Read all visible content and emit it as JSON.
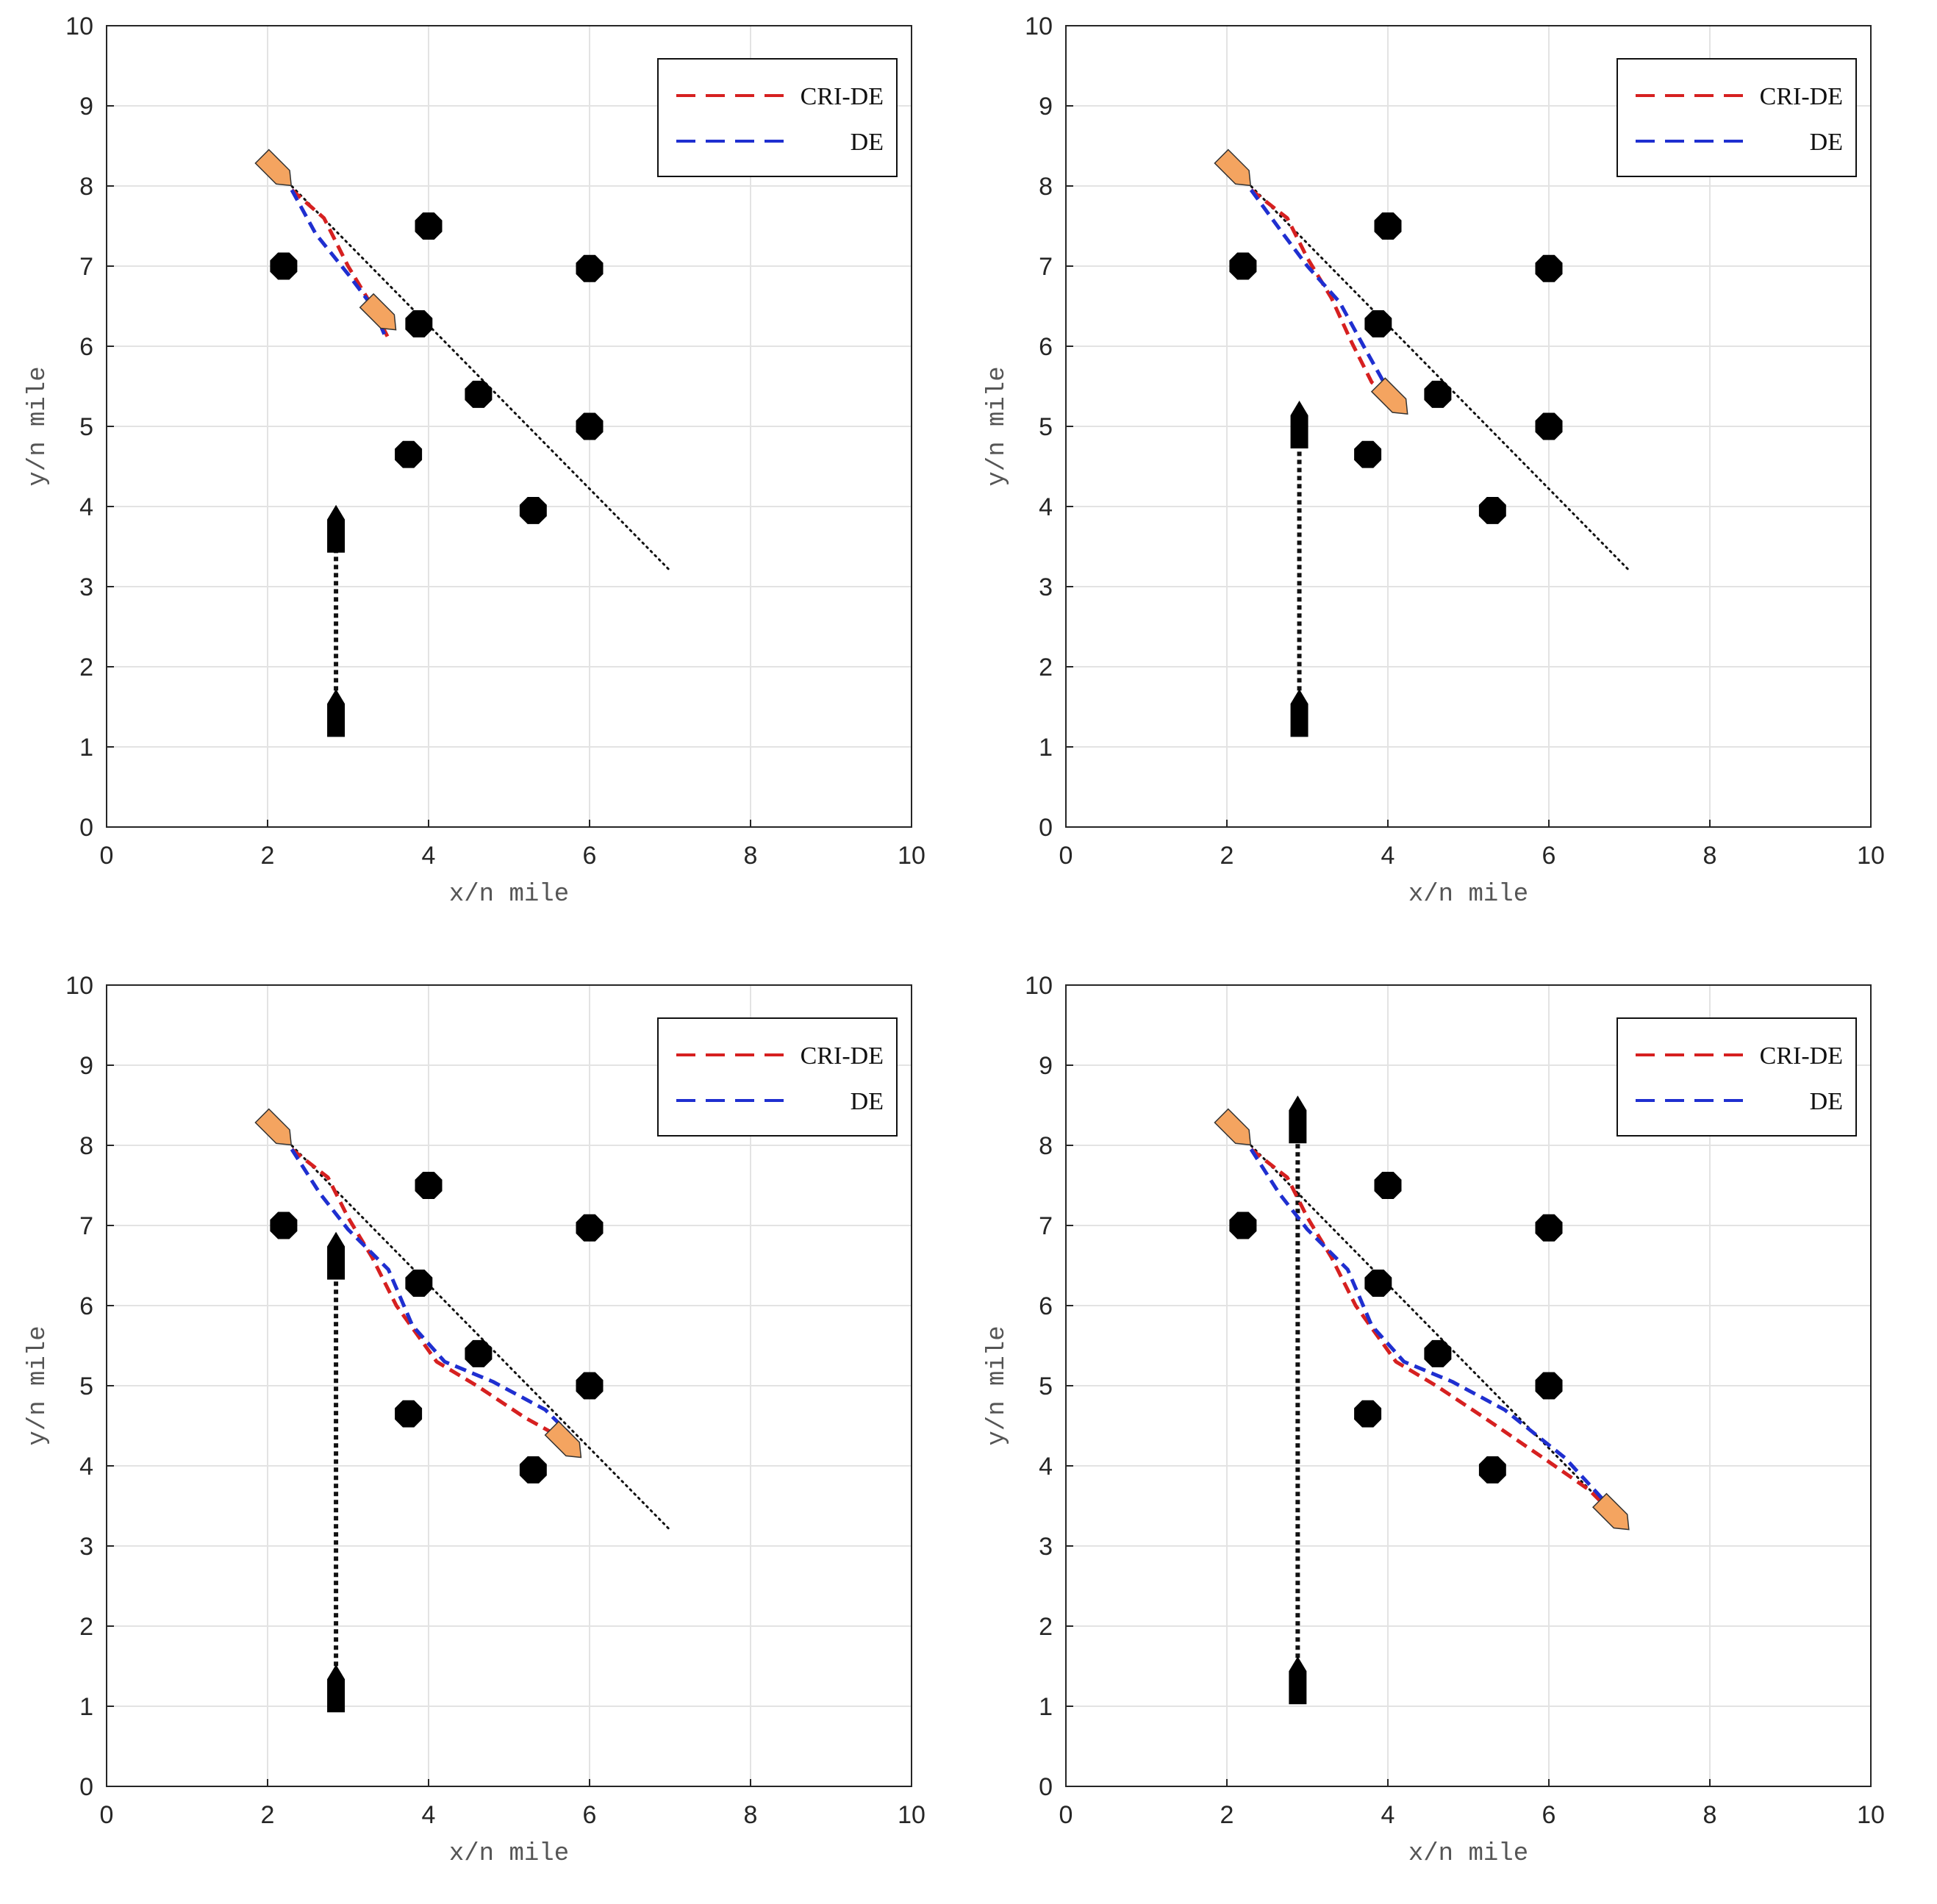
{
  "colors": {
    "cri_de": "#d62020",
    "de": "#1f2fd0",
    "own_ship_fill": "#f4a460",
    "target_ship": "#000000",
    "obstacle": "#000000",
    "grid": "#e3e3e3"
  },
  "chart_data": [
    {
      "type": "line",
      "stage": 1,
      "xlabel": "x/n mile",
      "ylabel": "y/n mile",
      "xlim": [
        0,
        10
      ],
      "ylim": [
        0,
        10
      ],
      "xticks": [
        "0",
        "2",
        "4",
        "6",
        "8",
        "10"
      ],
      "yticks": [
        "0",
        "1",
        "2",
        "3",
        "4",
        "5",
        "6",
        "7",
        "8",
        "9",
        "10"
      ],
      "grid": true,
      "legend": {
        "position": "top-right",
        "entries": [
          "CRI-DE",
          "DE"
        ]
      },
      "obstacles": [
        [
          2.2,
          7.0
        ],
        [
          4.0,
          7.5
        ],
        [
          6.0,
          6.97
        ],
        [
          3.88,
          6.28
        ],
        [
          4.62,
          5.4
        ],
        [
          6.0,
          5.0
        ],
        [
          3.75,
          4.65
        ],
        [
          5.3,
          3.95
        ]
      ],
      "planned_route": [
        [
          2.2,
          8.1
        ],
        [
          7.0,
          3.2
        ]
      ],
      "own_ship_start": [
        2.1,
        8.2
      ],
      "own_ship_current": [
        3.4,
        6.4
      ],
      "series": [
        {
          "name": "CRI-DE",
          "points": [
            [
              2.3,
              7.95
            ],
            [
              2.7,
              7.6
            ],
            [
              3.0,
              7.0
            ],
            [
              3.3,
              6.5
            ],
            [
              3.5,
              6.1
            ]
          ]
        },
        {
          "name": "DE",
          "points": [
            [
              2.3,
              7.95
            ],
            [
              2.6,
              7.4
            ],
            [
              3.0,
              6.9
            ],
            [
              3.3,
              6.5
            ],
            [
              3.45,
              6.15
            ]
          ]
        }
      ],
      "target_ship": {
        "start": [
          2.85,
          1.4
        ],
        "current": [
          2.85,
          3.7
        ]
      }
    },
    {
      "type": "line",
      "stage": 2,
      "xlabel": "x/n mile",
      "ylabel": "y/n mile",
      "xlim": [
        0,
        10
      ],
      "ylim": [
        0,
        10
      ],
      "xticks": [
        "0",
        "2",
        "4",
        "6",
        "8",
        "10"
      ],
      "yticks": [
        "0",
        "1",
        "2",
        "3",
        "4",
        "5",
        "6",
        "7",
        "8",
        "9",
        "10"
      ],
      "grid": true,
      "legend": {
        "position": "top-right",
        "entries": [
          "CRI-DE",
          "DE"
        ]
      },
      "obstacles": [
        [
          2.2,
          7.0
        ],
        [
          4.0,
          7.5
        ],
        [
          6.0,
          6.97
        ],
        [
          3.88,
          6.28
        ],
        [
          4.62,
          5.4
        ],
        [
          6.0,
          5.0
        ],
        [
          3.75,
          4.65
        ],
        [
          5.3,
          3.95
        ]
      ],
      "planned_route": [
        [
          2.2,
          8.1
        ],
        [
          7.0,
          3.2
        ]
      ],
      "own_ship_start": [
        2.1,
        8.2
      ],
      "own_ship_current": [
        4.05,
        5.35
      ],
      "series": [
        {
          "name": "CRI-DE",
          "points": [
            [
              2.3,
              7.95
            ],
            [
              2.75,
              7.6
            ],
            [
              3.0,
              7.1
            ],
            [
              3.3,
              6.6
            ],
            [
              3.55,
              6.05
            ],
            [
              3.8,
              5.55
            ],
            [
              4.1,
              5.3
            ]
          ]
        },
        {
          "name": "DE",
          "points": [
            [
              2.3,
              7.95
            ],
            [
              2.7,
              7.4
            ],
            [
              3.0,
              7.0
            ],
            [
              3.4,
              6.55
            ],
            [
              3.7,
              6.0
            ],
            [
              3.95,
              5.55
            ],
            [
              4.1,
              5.35
            ]
          ]
        }
      ],
      "target_ship": {
        "start": [
          2.9,
          1.4
        ],
        "current": [
          2.9,
          5.0
        ]
      }
    },
    {
      "type": "line",
      "stage": 3,
      "xlabel": "x/n mile",
      "ylabel": "y/n mile",
      "xlim": [
        0,
        10
      ],
      "ylim": [
        0,
        10
      ],
      "xticks": [
        "0",
        "2",
        "4",
        "6",
        "8",
        "10"
      ],
      "yticks": [
        "0",
        "1",
        "2",
        "3",
        "4",
        "5",
        "6",
        "7",
        "8",
        "9",
        "10"
      ],
      "grid": true,
      "legend": {
        "position": "top-right",
        "entries": [
          "CRI-DE",
          "DE"
        ]
      },
      "obstacles": [
        [
          2.2,
          7.0
        ],
        [
          4.0,
          7.5
        ],
        [
          6.0,
          6.97
        ],
        [
          3.88,
          6.28
        ],
        [
          4.62,
          5.4
        ],
        [
          6.0,
          5.0
        ],
        [
          3.75,
          4.65
        ],
        [
          5.3,
          3.95
        ]
      ],
      "planned_route": [
        [
          2.2,
          8.1
        ],
        [
          7.0,
          3.2
        ]
      ],
      "own_ship_start": [
        2.1,
        8.2
      ],
      "own_ship_current": [
        5.7,
        4.3
      ],
      "series": [
        {
          "name": "CRI-DE",
          "points": [
            [
              2.3,
              7.95
            ],
            [
              2.75,
              7.6
            ],
            [
              3.0,
              7.1
            ],
            [
              3.3,
              6.6
            ],
            [
              3.6,
              6.0
            ],
            [
              4.1,
              5.3
            ],
            [
              4.6,
              5.0
            ],
            [
              5.2,
              4.6
            ],
            [
              5.65,
              4.35
            ]
          ]
        },
        {
          "name": "DE",
          "points": [
            [
              2.3,
              7.95
            ],
            [
              2.65,
              7.4
            ],
            [
              3.0,
              6.95
            ],
            [
              3.5,
              6.45
            ],
            [
              3.8,
              5.75
            ],
            [
              4.2,
              5.3
            ],
            [
              4.8,
              5.05
            ],
            [
              5.45,
              4.7
            ],
            [
              5.75,
              4.4
            ]
          ]
        }
      ],
      "target_ship": {
        "start": [
          2.85,
          1.2
        ],
        "current": [
          2.85,
          6.6
        ]
      }
    },
    {
      "type": "line",
      "stage": 4,
      "xlabel": "x/n mile",
      "ylabel": "y/n mile",
      "xlim": [
        0,
        10
      ],
      "ylim": [
        0,
        10
      ],
      "xticks": [
        "0",
        "2",
        "4",
        "6",
        "8",
        "10"
      ],
      "yticks": [
        "0",
        "1",
        "2",
        "3",
        "4",
        "5",
        "6",
        "7",
        "8",
        "9",
        "10"
      ],
      "grid": true,
      "legend": {
        "position": "top-right",
        "entries": [
          "CRI-DE",
          "DE"
        ]
      },
      "obstacles": [
        [
          2.2,
          7.0
        ],
        [
          4.0,
          7.5
        ],
        [
          6.0,
          6.97
        ],
        [
          3.88,
          6.28
        ],
        [
          4.62,
          5.4
        ],
        [
          6.0,
          5.0
        ],
        [
          3.75,
          4.65
        ],
        [
          5.3,
          3.95
        ]
      ],
      "planned_route": [
        [
          2.2,
          8.1
        ],
        [
          7.0,
          3.2
        ]
      ],
      "own_ship_start": [
        2.1,
        8.2
      ],
      "own_ship_current": [
        6.8,
        3.4
      ],
      "series": [
        {
          "name": "CRI-DE",
          "points": [
            [
              2.3,
              7.95
            ],
            [
              2.75,
              7.6
            ],
            [
              3.0,
              7.1
            ],
            [
              3.3,
              6.6
            ],
            [
              3.6,
              6.0
            ],
            [
              4.1,
              5.3
            ],
            [
              4.6,
              5.0
            ],
            [
              5.2,
              4.6
            ],
            [
              6.0,
              4.05
            ],
            [
              6.5,
              3.7
            ],
            [
              6.75,
              3.45
            ]
          ]
        },
        {
          "name": "DE",
          "points": [
            [
              2.3,
              7.95
            ],
            [
              2.65,
              7.4
            ],
            [
              3.0,
              6.95
            ],
            [
              3.5,
              6.45
            ],
            [
              3.8,
              5.75
            ],
            [
              4.2,
              5.3
            ],
            [
              4.8,
              5.05
            ],
            [
              5.45,
              4.7
            ],
            [
              6.2,
              4.1
            ],
            [
              6.7,
              3.55
            ]
          ]
        }
      ],
      "target_ship": {
        "start": [
          2.88,
          1.3
        ],
        "current": [
          2.88,
          8.3
        ]
      }
    }
  ]
}
